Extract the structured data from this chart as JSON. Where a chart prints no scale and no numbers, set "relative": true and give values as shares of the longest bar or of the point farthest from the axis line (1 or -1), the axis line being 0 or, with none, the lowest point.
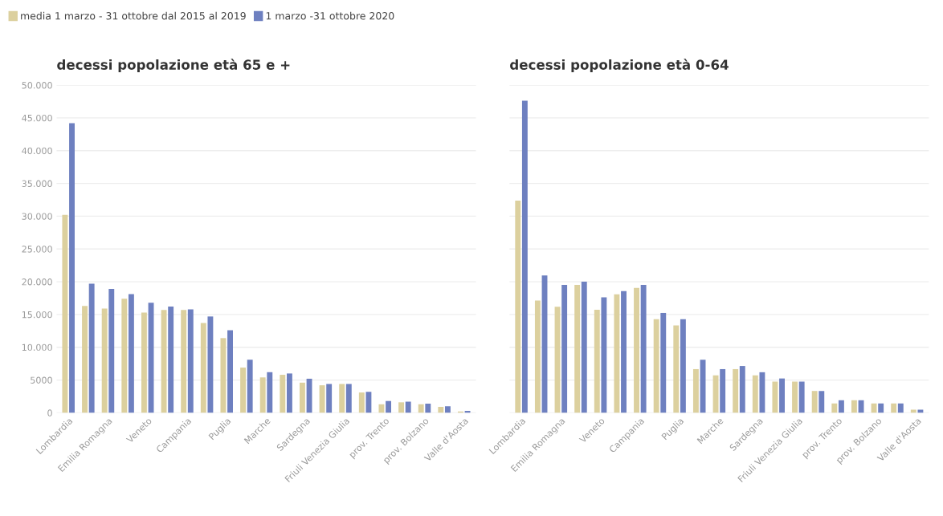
{
  "chart_data": [
    {
      "type": "bar",
      "title": "decessi popolazione età 65 e +",
      "categories": [
        "Lombardia",
        null,
        "Emilia Romagna",
        null,
        "Veneto",
        null,
        "Campania",
        null,
        "Puglia",
        null,
        "Marche",
        null,
        "Sardegna",
        null,
        "Friuli Venezia Giulia",
        null,
        "prov. Trento",
        null,
        "prov. Bolzano",
        null,
        "Valle d'Aosta"
      ],
      "series": [
        {
          "name": "media 1 marzo - 31 ottobre dal 2015 al 2019",
          "color": "#dcd09e",
          "values": [
            30200,
            16300,
            15900,
            17400,
            15300,
            15700,
            15700,
            13700,
            11400,
            6900,
            5400,
            5800,
            4600,
            4200,
            4400,
            3100,
            1300,
            1600,
            1300,
            900,
            200
          ]
        },
        {
          "name": "1 marzo -31 ottobre 2020",
          "color": "#6e80c0",
          "values": [
            44200,
            19700,
            18900,
            18100,
            16800,
            16200,
            15800,
            14700,
            12600,
            8100,
            6200,
            6000,
            5200,
            4400,
            4400,
            3200,
            1800,
            1700,
            1400,
            1000,
            300
          ]
        }
      ],
      "ylim": [
        0,
        50000
      ],
      "yticks": [
        0,
        5000,
        {
          "value": 10000,
          "label": "10.000"
        },
        {
          "value": 15000,
          "label": "15.000"
        },
        {
          "value": 20000,
          "label": "20.000"
        },
        {
          "value": 25000,
          "label": "25.000"
        },
        {
          "value": 30000,
          "label": "30.000"
        },
        {
          "value": 35000,
          "label": "35.000"
        },
        {
          "value": 40000,
          "label": "40.000"
        },
        {
          "value": 45000,
          "label": "45.000"
        },
        {
          "value": 50000,
          "label": "50.000"
        }
      ],
      "grid": "y",
      "legend": "top left"
    },
    {
      "type": "bar",
      "title": "decessi popolazione età 0-64",
      "categories": [
        "Lombardia",
        null,
        "Emilia Romagna",
        null,
        "Veneto",
        null,
        "Campania",
        null,
        "Puglia",
        null,
        "Marche",
        null,
        "Sardegna",
        null,
        "Friuli Venezia Giulia",
        null,
        "prov. Trento",
        null,
        "prov. Bolzano",
        null,
        "Valle d'Aosta"
      ],
      "series": [
        {
          "color": "#dcd09e",
          "values": [
            0.68,
            0.36,
            0.34,
            0.41,
            0.33,
            0.38,
            0.4,
            0.3,
            0.28,
            0.14,
            0.12,
            0.14,
            0.12,
            0.1,
            0.1,
            0.07,
            0.03,
            0.04,
            0.03,
            0.03,
            0.01
          ]
        },
        {
          "color": "#6e80c0",
          "values": [
            1,
            0.44,
            0.41,
            0.42,
            0.37,
            0.39,
            0.41,
            0.32,
            0.3,
            0.17,
            0.14,
            0.15,
            0.13,
            0.11,
            0.1,
            0.07,
            0.04,
            0.04,
            0.03,
            0.03,
            0.01
          ]
        }
      ],
      "relative": true,
      "grid": "y"
    }
  ]
}
